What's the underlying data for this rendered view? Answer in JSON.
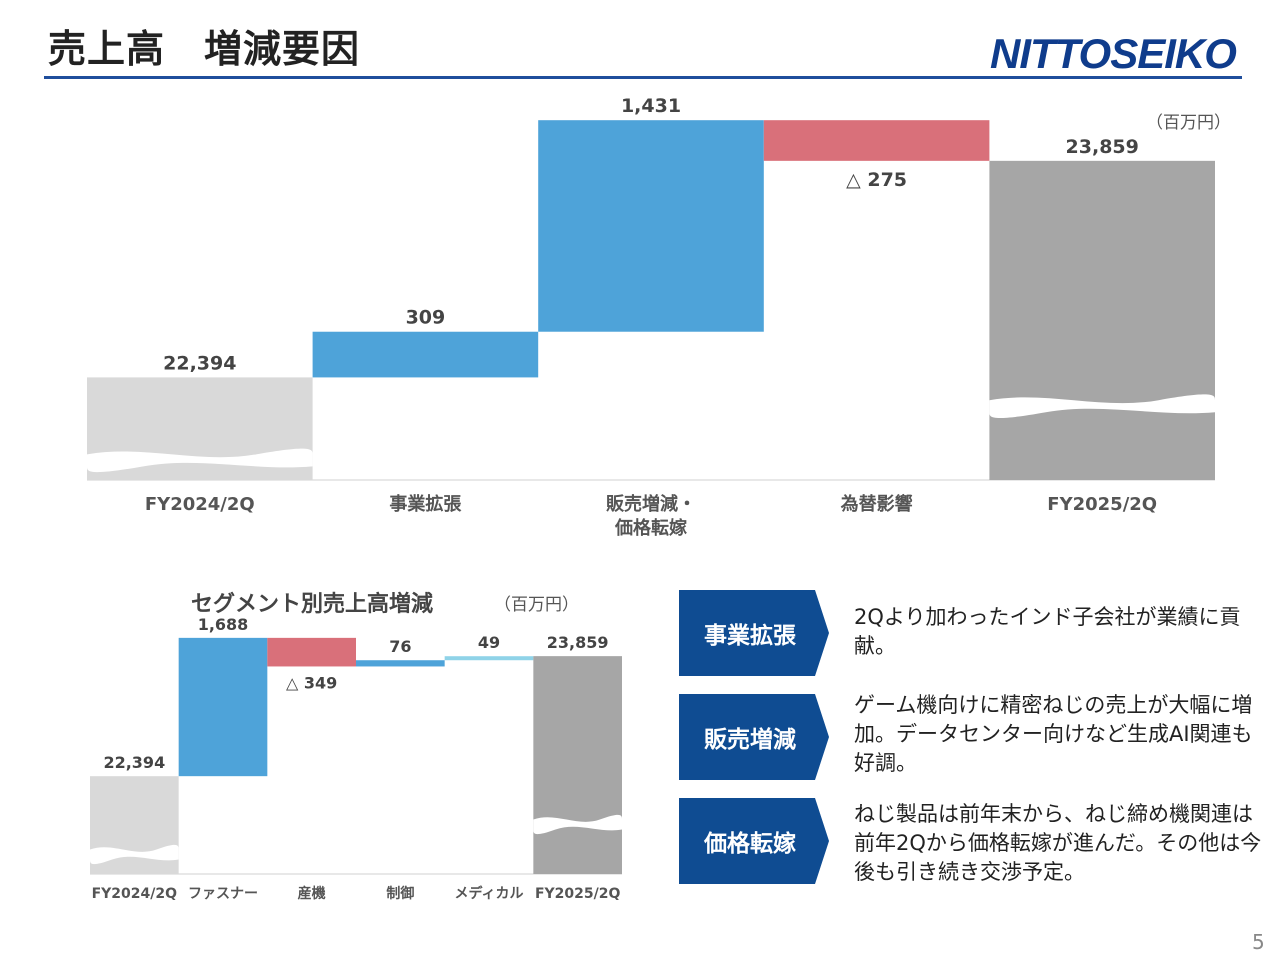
{
  "header": {
    "title": "売上高　増減要因",
    "logo_text": "NITTOSEIKO"
  },
  "main_chart": {
    "unit": "（百万円）"
  },
  "segment_chart": {
    "title": "セグメント別売上高増減",
    "unit": "（百万円）"
  },
  "chart_data": [
    {
      "type": "bar",
      "subtype": "waterfall",
      "categories": [
        "FY2024/2Q",
        "事業拡張",
        "販売増減・\n価格転嫁",
        "為替影響",
        "FY2025/2Q"
      ],
      "values": [
        22394,
        309,
        1431,
        -275,
        23859
      ],
      "data_labels": [
        "22,394",
        "309",
        "1,431",
        "△ 275",
        "23,859"
      ],
      "kinds": [
        "total",
        "delta",
        "delta",
        "delta",
        "total"
      ],
      "colors": [
        "#d9d9d9",
        "#4ea3d9",
        "#4ea3d9",
        "#d9707a",
        "#a6a6a6"
      ],
      "axis_break": true,
      "ylim": [
        21700,
        24000
      ],
      "title": "",
      "xlabel": "",
      "ylabel": ""
    },
    {
      "type": "bar",
      "subtype": "waterfall",
      "title": "セグメント別売上高増減",
      "categories": [
        "FY2024/2Q",
        "ファスナー",
        "産機",
        "制御",
        "メディカル",
        "FY2025/2Q"
      ],
      "values": [
        22394,
        1688,
        -349,
        76,
        49,
        23859
      ],
      "data_labels": [
        "22,394",
        "1,688",
        "△ 349",
        "76",
        "49",
        "23,859"
      ],
      "kinds": [
        "total",
        "delta",
        "delta",
        "delta",
        "delta",
        "total"
      ],
      "colors": [
        "#d9d9d9",
        "#4ea3d9",
        "#d9707a",
        "#4ea3d9",
        "#8fd3e8",
        "#a6a6a6"
      ],
      "axis_break": true,
      "ylim": [
        21200,
        24300
      ],
      "xlabel": "",
      "ylabel": ""
    }
  ],
  "cards": [
    {
      "label": "事業拡張",
      "text": "2Qより加わったインド子会社が業績に貢献。",
      "color": "#0f4c92"
    },
    {
      "label": "販売増減",
      "text": "ゲーム機向けに精密ねじの売上が大幅に増加。データセンター向けなど生成AI関連も好調。",
      "color": "#0f4c92"
    },
    {
      "label": "価格転嫁",
      "text": "ねじ製品は前年末から、ねじ締め機関連は前年2Qから価格転嫁が進んだ。その他は今後も引き続き交渉予定。",
      "color": "#0f4c92"
    }
  ],
  "page_number": "5"
}
